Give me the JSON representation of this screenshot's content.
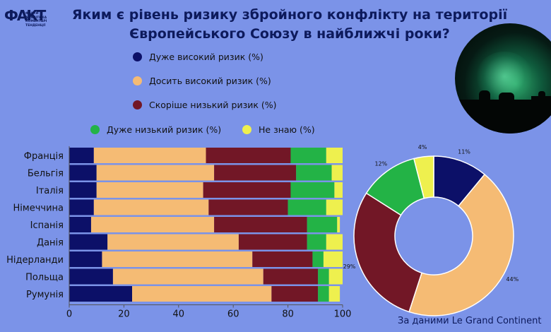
{
  "header": {
    "logo_mark": "ФАКТ",
    "logo_text": "ФАКТИ\nАНАЛІТИКА\nКОМЕНТАРІ\nТЕНДЕНЦІЇ",
    "title_line1": "Яким є рівень ризику збройного конфлікту на території",
    "title_line2": "Європейського Союзу в найближчі роки?"
  },
  "source": "За даними Le Grand Continent",
  "colors": {
    "background": "#7b93e8",
    "very_high": "#0c1068",
    "fairly_high": "#f5bb74",
    "rather_low": "#721726",
    "very_low": "#23b346",
    "dont_know": "#eef04e"
  },
  "photo_icon": "soldiers-at-night-photo",
  "chart_data": [
    {
      "type": "bar",
      "orientation": "horizontal",
      "stacked": true,
      "categories": [
        "Франція",
        "Бельгія",
        "Італія",
        "Німеччина",
        "Іспанія",
        "Данія",
        "Нідерланди",
        "Польща",
        "Румунія"
      ],
      "series": [
        {
          "name": "Дуже високий ризик (%)",
          "color": "#0c1068",
          "values": [
            9,
            10,
            10,
            9,
            8,
            14,
            12,
            16,
            23
          ]
        },
        {
          "name": "Досить високий ризик (%)",
          "color": "#f5bb74",
          "values": [
            41,
            43,
            39,
            42,
            45,
            48,
            55,
            55,
            51
          ]
        },
        {
          "name": "Скоріше низький ризик (%)",
          "color": "#721726",
          "values": [
            31,
            30,
            32,
            29,
            34,
            25,
            22,
            20,
            17
          ]
        },
        {
          "name": "Дуже низький ризик (%)",
          "color": "#23b346",
          "values": [
            13,
            13,
            16,
            14,
            11,
            7,
            4,
            4,
            4
          ]
        },
        {
          "name": "Не знаю (%)",
          "color": "#eef04e",
          "values": [
            6,
            4,
            3,
            6,
            1,
            6,
            7,
            5,
            4
          ]
        }
      ],
      "xlim": [
        0,
        100
      ],
      "xticks": [
        0,
        20,
        40,
        60,
        80,
        100
      ],
      "legend_position": "top"
    },
    {
      "type": "pie",
      "donut": true,
      "values": [
        11,
        44,
        29,
        12,
        4
      ],
      "labels": [
        "11%",
        "44%",
        "29%",
        "12%",
        "4%"
      ],
      "colors": [
        "#0c1068",
        "#f5bb74",
        "#721726",
        "#23b346",
        "#eef04e"
      ]
    }
  ]
}
